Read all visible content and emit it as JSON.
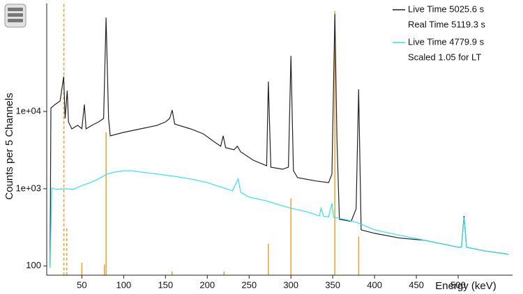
{
  "chart_data": {
    "type": "line",
    "xlabel": "Energy (keV)",
    "ylabel": "Counts per 5 Channels",
    "log_y": true,
    "legend": "upper right",
    "xlim": [
      8,
      565
    ],
    "ylim": [
      76,
      250000
    ],
    "xticks": [
      50,
      100,
      150,
      200,
      250,
      300,
      350,
      400,
      450,
      500
    ],
    "yticks": [
      100,
      {
        "value": 1000,
        "label": "1e+03"
      },
      {
        "value": 10000,
        "label": "1e+04"
      }
    ],
    "series": [
      {
        "name": "Live Time 5025.6 s",
        "note": "Real Time 5119.3 s",
        "color": "#222222",
        "x": [
          12,
          13,
          18,
          24,
          28.3,
          30,
          32.5,
          34,
          38,
          45,
          50,
          53,
          55,
          62,
          70,
          76,
          79,
          82,
          84,
          100,
          120,
          140,
          150,
          155,
          158,
          161,
          180,
          195,
          210,
          216,
          219,
          222,
          232,
          236,
          240,
          255,
          265,
          271,
          273,
          276,
          290,
          297,
          300,
          303,
          308,
          330,
          345,
          349,
          352.5,
          355,
          358,
          372,
          378,
          381,
          384,
          400,
          430,
          460,
          480,
          500,
          504,
          507,
          510,
          530,
          560
        ],
        "values": [
          100,
          11100,
          12300,
          13700,
          28200,
          8130,
          18600,
          7330,
          5950,
          6610,
          6000,
          12300,
          5950,
          6610,
          7330,
          8130,
          164000,
          8130,
          4840,
          5370,
          5950,
          6610,
          7330,
          8130,
          10400,
          6890,
          5950,
          5150,
          3930,
          3550,
          4840,
          3400,
          3200,
          3550,
          3000,
          2340,
          2110,
          1980,
          24400,
          1900,
          1790,
          1900,
          52500,
          1710,
          1390,
          1260,
          1200,
          1550,
          182000,
          4360,
          402,
          378,
          548,
          19400,
          294,
          265,
          230,
          215,
          194,
          175,
          175,
          445,
          175,
          158,
          142
        ]
      },
      {
        "name": "Live Time 4779.9 s",
        "note": "Scaled 1.05 for LT",
        "color": "#33e0f0",
        "x": [
          12,
          14,
          20,
          30,
          40,
          50,
          60,
          70,
          80,
          90,
          100,
          110,
          120,
          140,
          160,
          180,
          200,
          220,
          230,
          237,
          240,
          250,
          270,
          290,
          300,
          320,
          334,
          336,
          339,
          345,
          349,
          351,
          365,
          380,
          400,
          430,
          460,
          480,
          500,
          504,
          507,
          510,
          530,
          560
        ],
        "values": [
          94,
          1020,
          980,
          1000,
          980,
          1100,
          1200,
          1340,
          1550,
          1650,
          1710,
          1710,
          1650,
          1550,
          1450,
          1340,
          1200,
          1020,
          940,
          1340,
          900,
          780,
          700,
          600,
          560,
          500,
          445,
          560,
          440,
          430,
          647,
          427,
          400,
          362,
          294,
          250,
          215,
          194,
          175,
          175,
          427,
          175,
          158,
          142
        ]
      }
    ],
    "reference_lines": {
      "color": "#f0a030",
      "x": [
        28.5,
        32,
        50,
        77,
        79,
        158,
        220,
        273,
        300,
        352.5,
        381
      ],
      "values": [
        250000,
        326,
        110,
        105,
        5370,
        85,
        85,
        194,
        748,
        200000,
        240
      ],
      "dashed": [
        true,
        true,
        false,
        false,
        false,
        false,
        false,
        false,
        false,
        false,
        false
      ]
    }
  }
}
